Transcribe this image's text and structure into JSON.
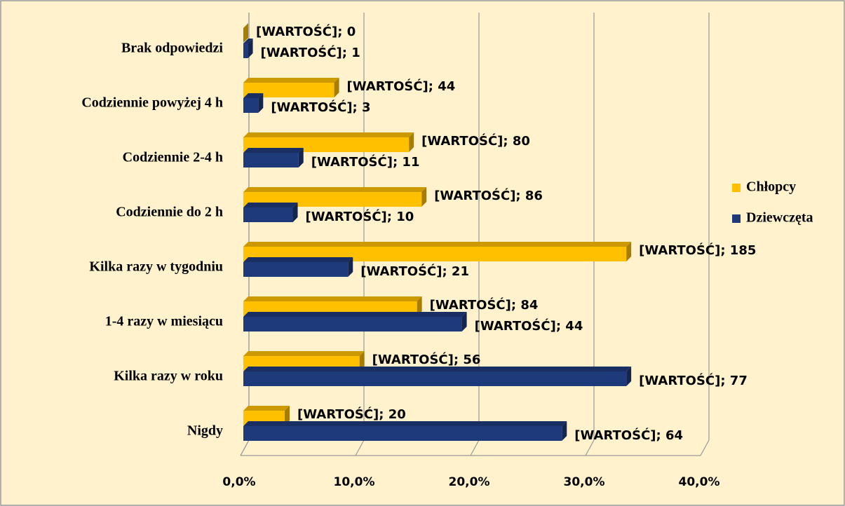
{
  "chart_data": {
    "type": "bar3d_horizontal",
    "categories": [
      "Brak odpowiedzi",
      "Codziennie powyżej 4 h",
      "Codziennie 2-4 h",
      "Codziennie do 2 h",
      "Kilka razy w tygodniu",
      "1-4 razy w miesiącu",
      "Kilka razy w roku",
      "Nigdy"
    ],
    "series": [
      {
        "name": "Chłopcy",
        "color": "#FFC000",
        "values": [
          0,
          7.9,
          14.4,
          15.5,
          33.3,
          15.1,
          10.1,
          3.6
        ],
        "value_labels": [
          "[WARTOŚĆ]; 0",
          "[WARTOŚĆ]; 44",
          "[WARTOŚĆ]; 80",
          "[WARTOŚĆ]; 86",
          "[WARTOŚĆ]; 185",
          "[WARTOŚĆ]; 84",
          "[WARTOŚĆ]; 56",
          "[WARTOŚĆ]; 20"
        ]
      },
      {
        "name": "Dziewczęta",
        "color": "#1F3A7A",
        "values": [
          0.4,
          1.3,
          4.8,
          4.3,
          9.1,
          19.0,
          33.3,
          27.7
        ],
        "value_labels": [
          "[WARTOŚĆ]; 1",
          "[WARTOŚĆ]; 3",
          "[WARTOŚĆ]; 11",
          "[WARTOŚĆ]; 10",
          "[WARTOŚĆ]; 21",
          "[WARTOŚĆ]; 44",
          "[WARTOŚĆ]; 77",
          "[WARTOŚĆ]; 64"
        ]
      }
    ],
    "xlim": [
      0,
      40
    ],
    "xticks": [
      {
        "value": 0,
        "label": "0,0%"
      },
      {
        "value": 10,
        "label": "10,0%"
      },
      {
        "value": 20,
        "label": "20,0%"
      },
      {
        "value": 30,
        "label": "30,0%"
      },
      {
        "value": 40,
        "label": "40,0%"
      }
    ],
    "grid": true,
    "legend": "right"
  }
}
